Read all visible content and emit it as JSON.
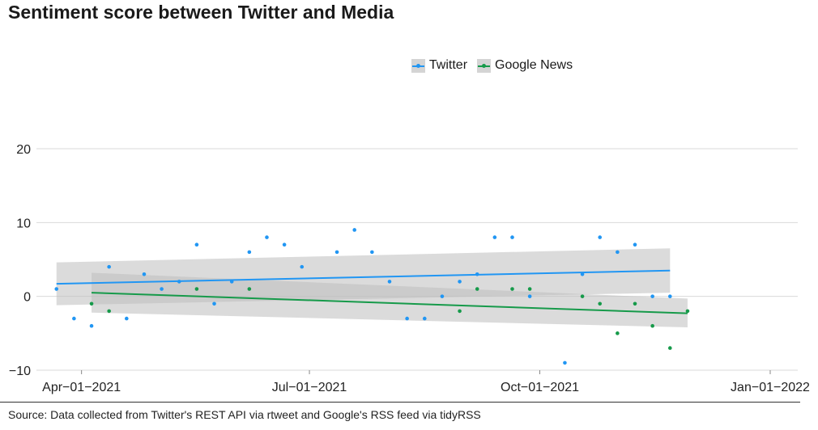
{
  "title": "Sentiment score between Twitter and Media",
  "source": "Source: Data collected from Twitter's REST API via rtweet and Google's RSS feed via tidyRSS",
  "legend": [
    {
      "name": "Twitter",
      "color": "#2196f3"
    },
    {
      "name": "Google News",
      "color": "#169a4a"
    }
  ],
  "chart_data": {
    "type": "scatter",
    "ylim": [
      -10,
      20
    ],
    "xlim": [
      "2021-03-14",
      "2022-01-12"
    ],
    "y_ticks": [
      20,
      10,
      0,
      -10
    ],
    "x_ticks": [
      "2021-04-01",
      "2021-07-01",
      "2021-10-01",
      "2022-01-01"
    ],
    "x_tick_labels": [
      "Apr−01−2021",
      "Jul−01−2021",
      "Oct−01−2021",
      "Jan−01−2022"
    ],
    "grid": true,
    "legend_position": "top-center",
    "series": [
      {
        "name": "Twitter",
        "color": "#2196f3",
        "points": [
          [
            "2021-03-22",
            1
          ],
          [
            "2021-03-29",
            -3
          ],
          [
            "2021-04-05",
            -4
          ],
          [
            "2021-04-12",
            4
          ],
          [
            "2021-04-19",
            -3
          ],
          [
            "2021-04-26",
            3
          ],
          [
            "2021-05-03",
            1
          ],
          [
            "2021-05-10",
            2
          ],
          [
            "2021-05-17",
            7
          ],
          [
            "2021-05-24",
            -1
          ],
          [
            "2021-05-31",
            2
          ],
          [
            "2021-06-07",
            6
          ],
          [
            "2021-06-14",
            8
          ],
          [
            "2021-06-21",
            7
          ],
          [
            "2021-06-28",
            4
          ],
          [
            "2021-07-12",
            6
          ],
          [
            "2021-07-19",
            9
          ],
          [
            "2021-07-26",
            6
          ],
          [
            "2021-08-02",
            2
          ],
          [
            "2021-08-09",
            -3
          ],
          [
            "2021-08-16",
            -3
          ],
          [
            "2021-08-23",
            0
          ],
          [
            "2021-08-30",
            2
          ],
          [
            "2021-09-06",
            3
          ],
          [
            "2021-09-13",
            8
          ],
          [
            "2021-09-20",
            8
          ],
          [
            "2021-09-27",
            0
          ],
          [
            "2021-10-11",
            -9
          ],
          [
            "2021-10-18",
            3
          ],
          [
            "2021-10-25",
            8
          ],
          [
            "2021-11-01",
            6
          ],
          [
            "2021-11-08",
            7
          ],
          [
            "2021-11-15",
            0
          ],
          [
            "2021-11-22",
            0
          ]
        ],
        "trend": {
          "start": [
            "2021-03-22",
            1.7
          ],
          "end": [
            "2021-11-22",
            3.5
          ]
        },
        "band": {
          "start": [
            -1.2,
            4.6
          ],
          "end": [
            0.5,
            6.5
          ]
        }
      },
      {
        "name": "Google News",
        "color": "#169a4a",
        "points": [
          [
            "2021-04-05",
            -1
          ],
          [
            "2021-04-12",
            -2
          ],
          [
            "2021-05-17",
            1
          ],
          [
            "2021-06-07",
            1
          ],
          [
            "2021-08-30",
            -2
          ],
          [
            "2021-09-06",
            1
          ],
          [
            "2021-09-20",
            1
          ],
          [
            "2021-09-27",
            1
          ],
          [
            "2021-10-18",
            0
          ],
          [
            "2021-10-25",
            -1
          ],
          [
            "2021-11-01",
            -5
          ],
          [
            "2021-11-08",
            -1
          ],
          [
            "2021-11-15",
            -4
          ],
          [
            "2021-11-22",
            -7
          ],
          [
            "2021-11-29",
            -2
          ]
        ],
        "trend": {
          "start": [
            "2021-04-05",
            0.5
          ],
          "end": [
            "2021-11-29",
            -2.3
          ]
        },
        "band": {
          "start": [
            -2.2,
            3.2
          ],
          "end": [
            -4.2,
            -0.3
          ]
        }
      }
    ]
  }
}
